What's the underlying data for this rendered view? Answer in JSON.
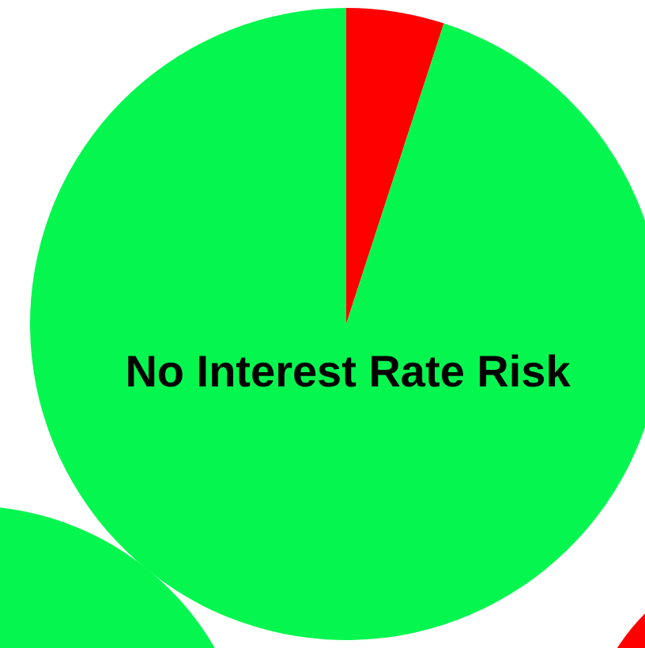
{
  "chart_data": {
    "type": "pie",
    "title": "No Interest Rate Risk",
    "categories": [
      null,
      null
    ],
    "values": [
      5,
      95
    ],
    "colors": [
      "#ff0000",
      "#05f74f"
    ]
  }
}
